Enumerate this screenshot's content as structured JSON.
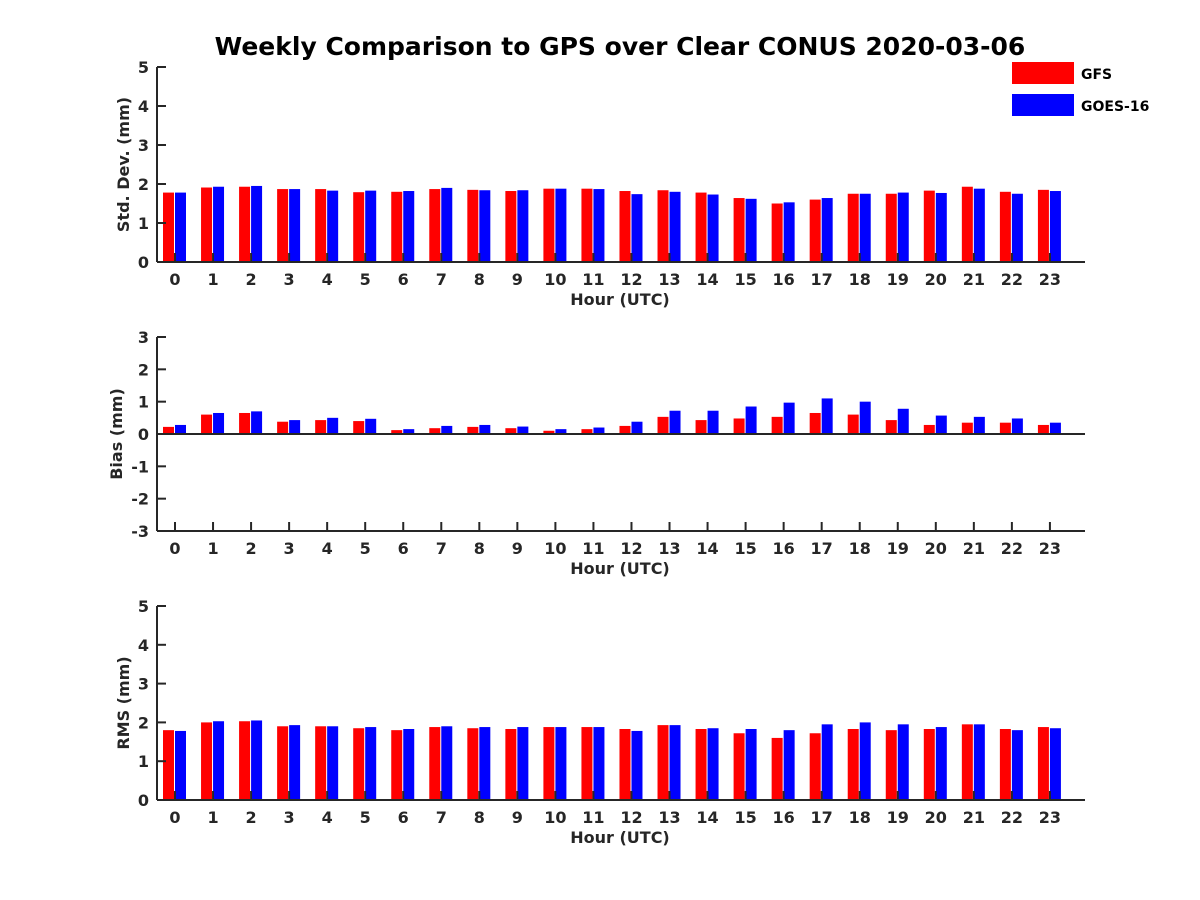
{
  "figure": {
    "title": "Weekly Comparison to GPS over Clear CONUS 2020-03-06"
  },
  "legend": {
    "placement": "top-right",
    "entries": [
      {
        "name": "GFS",
        "color": "#ff0000"
      },
      {
        "name": "GOES-16",
        "color": "#0000ff"
      }
    ]
  },
  "chart_data": [
    {
      "type": "bar",
      "ylabel": "Std. Dev. (mm)",
      "xlabel": "Hour (UTC)",
      "ylim": [
        0,
        5
      ],
      "yticks": [
        0,
        1,
        2,
        3,
        4,
        5
      ],
      "categories": [
        "0",
        "1",
        "2",
        "3",
        "4",
        "5",
        "6",
        "7",
        "8",
        "9",
        "10",
        "11",
        "12",
        "13",
        "14",
        "15",
        "16",
        "17",
        "18",
        "19",
        "20",
        "21",
        "22",
        "23"
      ],
      "series": [
        {
          "name": "GFS",
          "color": "#ff0000",
          "values": [
            1.78,
            1.91,
            1.93,
            1.87,
            1.87,
            1.79,
            1.8,
            1.87,
            1.85,
            1.82,
            1.88,
            1.88,
            1.82,
            1.84,
            1.78,
            1.64,
            1.5,
            1.6,
            1.75,
            1.75,
            1.83,
            1.93,
            1.8,
            1.85
          ]
        },
        {
          "name": "GOES-16",
          "color": "#0000ff",
          "values": [
            1.78,
            1.93,
            1.95,
            1.87,
            1.83,
            1.83,
            1.82,
            1.9,
            1.84,
            1.84,
            1.88,
            1.87,
            1.74,
            1.8,
            1.73,
            1.62,
            1.53,
            1.64,
            1.75,
            1.78,
            1.77,
            1.88,
            1.75,
            1.82
          ]
        }
      ],
      "grid": false
    },
    {
      "type": "bar",
      "ylabel": "Bias (mm)",
      "xlabel": "Hour (UTC)",
      "ylim": [
        -3,
        3
      ],
      "yticks": [
        -3,
        -2,
        -1,
        0,
        1,
        2,
        3
      ],
      "categories": [
        "0",
        "1",
        "2",
        "3",
        "4",
        "5",
        "6",
        "7",
        "8",
        "9",
        "10",
        "11",
        "12",
        "13",
        "14",
        "15",
        "16",
        "17",
        "18",
        "19",
        "20",
        "21",
        "22",
        "23"
      ],
      "series": [
        {
          "name": "GFS",
          "color": "#ff0000",
          "values": [
            0.22,
            0.6,
            0.65,
            0.38,
            0.43,
            0.4,
            0.12,
            0.18,
            0.22,
            0.18,
            0.1,
            0.15,
            0.25,
            0.53,
            0.43,
            0.48,
            0.53,
            0.65,
            0.6,
            0.43,
            0.28,
            0.35,
            0.35,
            0.28
          ]
        },
        {
          "name": "GOES-16",
          "color": "#0000ff",
          "values": [
            0.28,
            0.65,
            0.7,
            0.43,
            0.5,
            0.47,
            0.15,
            0.25,
            0.28,
            0.23,
            0.15,
            0.2,
            0.38,
            0.72,
            0.72,
            0.85,
            0.97,
            1.1,
            1.0,
            0.78,
            0.57,
            0.53,
            0.48,
            0.35
          ]
        }
      ],
      "grid": false
    },
    {
      "type": "bar",
      "ylabel": "RMS (mm)",
      "xlabel": "Hour (UTC)",
      "ylim": [
        0,
        5
      ],
      "yticks": [
        0,
        1,
        2,
        3,
        4,
        5
      ],
      "categories": [
        "0",
        "1",
        "2",
        "3",
        "4",
        "5",
        "6",
        "7",
        "8",
        "9",
        "10",
        "11",
        "12",
        "13",
        "14",
        "15",
        "16",
        "17",
        "18",
        "19",
        "20",
        "21",
        "22",
        "23"
      ],
      "series": [
        {
          "name": "GFS",
          "color": "#ff0000",
          "values": [
            1.8,
            2.0,
            2.03,
            1.9,
            1.9,
            1.85,
            1.8,
            1.88,
            1.85,
            1.83,
            1.88,
            1.88,
            1.83,
            1.93,
            1.83,
            1.72,
            1.6,
            1.72,
            1.83,
            1.8,
            1.83,
            1.95,
            1.83,
            1.88
          ]
        },
        {
          "name": "GOES-16",
          "color": "#0000ff",
          "values": [
            1.78,
            2.03,
            2.05,
            1.93,
            1.9,
            1.88,
            1.83,
            1.9,
            1.88,
            1.88,
            1.88,
            1.88,
            1.78,
            1.93,
            1.85,
            1.83,
            1.8,
            1.95,
            2.0,
            1.95,
            1.88,
            1.95,
            1.8,
            1.85
          ]
        }
      ],
      "grid": false
    }
  ]
}
